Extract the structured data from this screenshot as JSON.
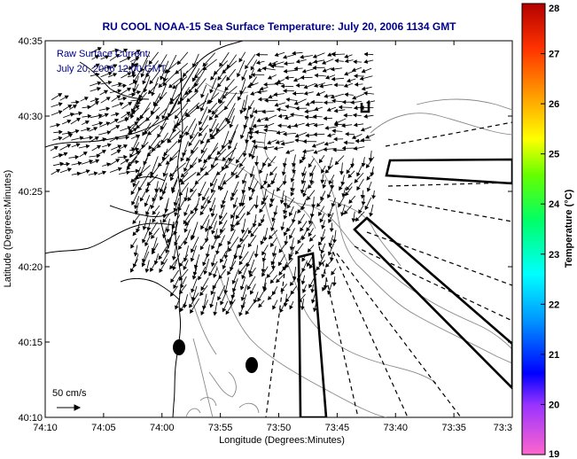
{
  "chart_data": {
    "type": "vector-field-map",
    "title": "RU COOL  NOAA-15  Sea Surface Temperature:  July 20, 2006 1134 GMT",
    "xlabel": "Longitude (Degrees:Minutes)",
    "ylabel": "Latitude (Degrees:Minutes)",
    "x_tick_labels": [
      "74:10",
      "74:05",
      "74:00",
      "73:55",
      "73:50",
      "73:45",
      "73:40",
      "73:35",
      "73:3"
    ],
    "y_tick_labels": [
      "40:35",
      "40:30",
      "40:25",
      "40:20",
      "40:15",
      "40:10"
    ],
    "xlim_deg": [
      -74.1667,
      -73.5
    ],
    "ylim_deg": [
      40.1667,
      40.5833
    ],
    "annotation_lines": [
      "Raw Surface Current:",
      "July 20, 2006 12:00 GMT"
    ],
    "scale_label": "50 cm/s",
    "colorbar": {
      "label": "Temperature (°C)",
      "ticks": [
        "28",
        "27",
        "26",
        "25",
        "24",
        "23",
        "22",
        "21",
        "20",
        "19"
      ],
      "range": [
        19,
        28
      ]
    },
    "colors": {
      "title": "#00008b",
      "annotation": "#00008b",
      "coastline": "#000000",
      "contours": "#808080",
      "arrows": "#000000"
    }
  }
}
